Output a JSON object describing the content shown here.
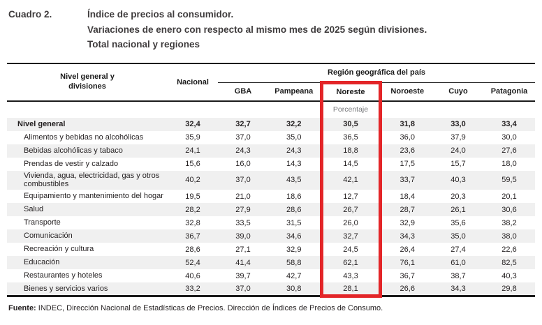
{
  "title": {
    "label": "Cuadro 2.",
    "lines": [
      "Índice de precios al consumidor.",
      "Variaciones de enero con respecto al mismo mes de 2025 según divisiones.",
      "Total nacional y regiones"
    ]
  },
  "table": {
    "col_headers": {
      "divisions": "Nivel general y\ndivisiones",
      "nacional": "Nacional",
      "region_group": "Región geográfica del país",
      "regions": [
        "GBA",
        "Pampeana",
        "Noreste",
        "Noroeste",
        "Cuyo",
        "Patagonia"
      ]
    },
    "unit_label": "Porcentaje",
    "highlight": {
      "column": "Noreste",
      "color": "#e32528"
    },
    "stripe_color": "#f0f0f0"
  },
  "chart_data": {
    "type": "table",
    "title": "Cuadro 2. Índice de precios al consumidor. Variaciones de enero con respecto al mismo mes de 2025 según divisiones. Total nacional y regiones",
    "unit": "Porcentaje",
    "columns": [
      "Nivel general y divisiones",
      "Nacional",
      "GBA",
      "Pampeana",
      "Noreste",
      "Noroeste",
      "Cuyo",
      "Patagonia"
    ],
    "column_group": {
      "label": "Región geográfica del país",
      "columns": [
        "GBA",
        "Pampeana",
        "Noreste",
        "Noroeste",
        "Cuyo",
        "Patagonia"
      ]
    },
    "highlighted_column": "Noreste",
    "rows": [
      {
        "division": "Nivel general",
        "is_total": true,
        "values": [
          32.4,
          32.7,
          32.2,
          30.5,
          31.8,
          33.0,
          33.4
        ]
      },
      {
        "division": "Alimentos y bebidas no alcohólicas",
        "values": [
          35.9,
          37.0,
          35.0,
          36.5,
          36.0,
          37.9,
          30.0
        ]
      },
      {
        "division": "Bebidas alcohólicas y tabaco",
        "values": [
          24.1,
          24.3,
          24.3,
          18.8,
          23.6,
          24.0,
          27.6
        ]
      },
      {
        "division": "Prendas de vestir y calzado",
        "values": [
          15.6,
          16.0,
          14.3,
          14.5,
          17.5,
          15.7,
          18.0
        ]
      },
      {
        "division": "Vivienda, agua, electricidad, gas y otros combustibles",
        "values": [
          40.2,
          37.0,
          43.5,
          42.1,
          33.7,
          40.3,
          59.5
        ]
      },
      {
        "division": "Equipamiento y mantenimiento del hogar",
        "values": [
          19.5,
          21.0,
          18.6,
          12.7,
          18.4,
          20.3,
          20.1
        ]
      },
      {
        "division": "Salud",
        "values": [
          28.2,
          27.9,
          28.6,
          26.7,
          28.7,
          26.1,
          30.6
        ]
      },
      {
        "division": "Transporte",
        "values": [
          32.8,
          33.5,
          31.5,
          26.0,
          32.9,
          35.6,
          38.2
        ]
      },
      {
        "division": "Comunicación",
        "values": [
          36.7,
          39.0,
          34.6,
          32.7,
          34.3,
          35.0,
          38.0
        ]
      },
      {
        "division": "Recreación y cultura",
        "values": [
          28.6,
          27.1,
          32.9,
          24.5,
          26.4,
          27.4,
          22.6
        ]
      },
      {
        "division": "Educación",
        "values": [
          52.4,
          41.4,
          58.8,
          62.1,
          76.1,
          61.0,
          82.5
        ]
      },
      {
        "division": "Restaurantes y hoteles",
        "values": [
          40.6,
          39.7,
          42.7,
          43.3,
          36.7,
          38.7,
          40.3
        ]
      },
      {
        "division": "Bienes y servicios varios",
        "values": [
          33.2,
          37.0,
          30.8,
          28.1,
          26.6,
          34.3,
          29.8
        ]
      }
    ]
  },
  "footer": {
    "source_label": "Fuente:",
    "source_text": " INDEC, Dirección Nacional de Estadísticas de Precios. Dirección de Índices de Precios de Consumo."
  }
}
